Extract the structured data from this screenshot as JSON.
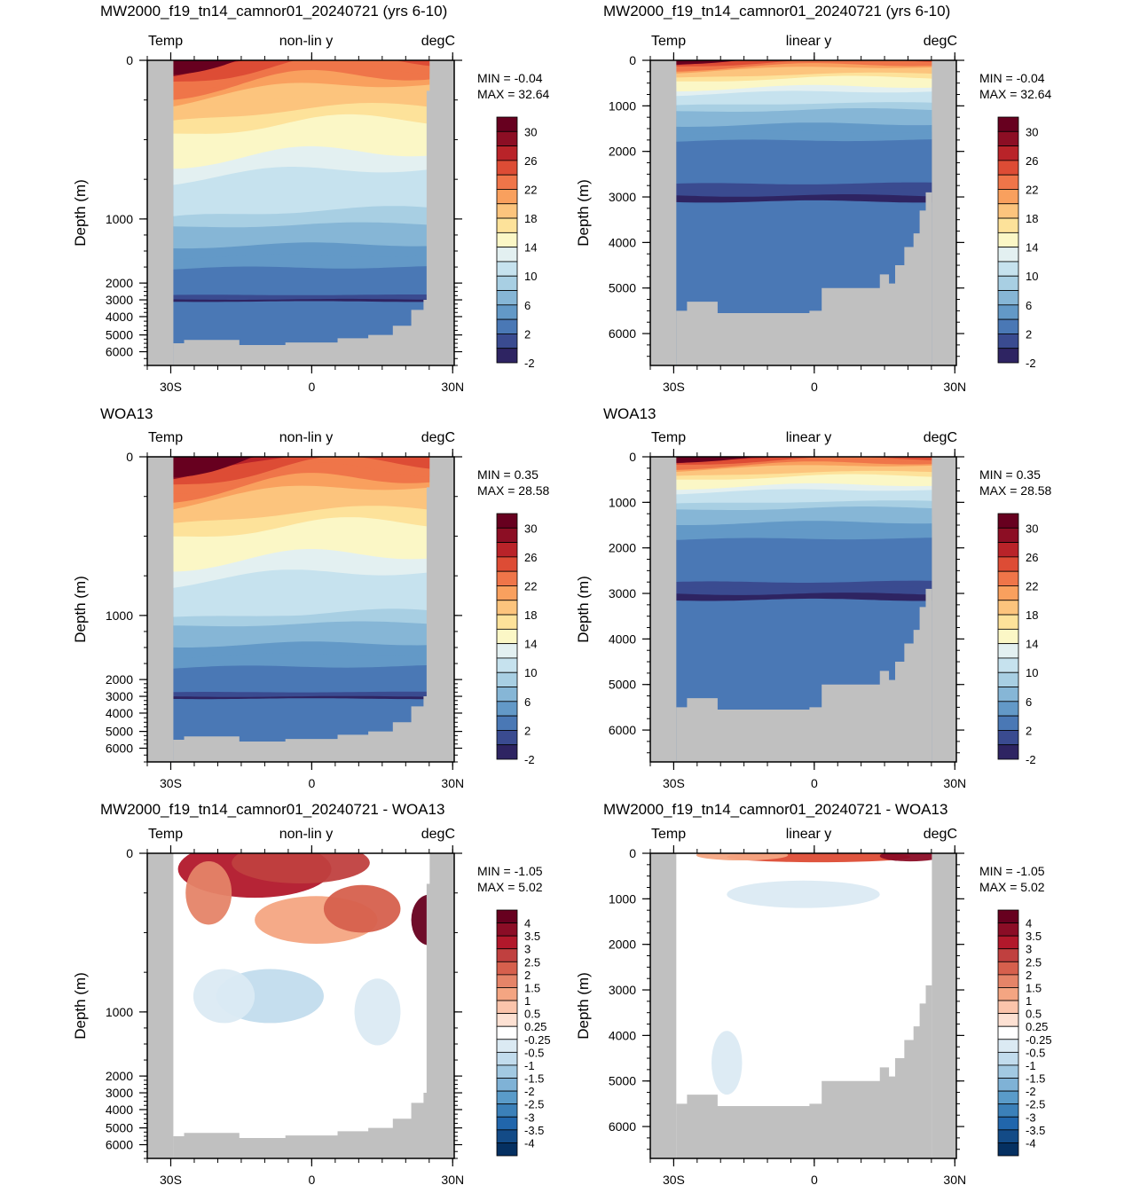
{
  "colors": {
    "land": "#c0c0c0",
    "temp_levels": [
      "#2e2462",
      "#3a4b90",
      "#4a78b5",
      "#6399c7",
      "#86b6d6",
      "#a8cfe3",
      "#c6e2ee",
      "#e3f0f1",
      "#fbf7c6",
      "#fde29a",
      "#fcc47d",
      "#f9a05e",
      "#ef7549",
      "#dd4c35",
      "#b92329",
      "#8c0e24",
      "#67001f"
    ],
    "temp_legend_labels": [
      "30",
      "26",
      "22",
      "18",
      "14",
      "10",
      "6",
      "2",
      "-2"
    ],
    "diff_levels": [
      "#053061",
      "#134b87",
      "#2166ac",
      "#3b80b9",
      "#5a9bc9",
      "#7fb2d6",
      "#a2c9e2",
      "#c2dced",
      "#dbeaf3",
      "#ffffff",
      "#fde1d3",
      "#fbc4ab",
      "#f4a582",
      "#e58468",
      "#d6604d",
      "#c0403f",
      "#b2182b",
      "#8b0d26",
      "#67001f"
    ],
    "diff_legend_labels": [
      "4",
      "3.5",
      "3",
      "2.5",
      "2",
      "1.5",
      "1",
      "0.5",
      "0.25",
      "-0.25",
      "-0.5",
      "-1",
      "-1.5",
      "-2",
      "-2.5",
      "-3",
      "-3.5",
      "-4"
    ]
  },
  "panels": [
    {
      "title": "MW2000_f19_tn14_camnor01_20240721 (yrs 6-10)",
      "left_label": "Temp",
      "center_label": "non-lin y",
      "right_label": "degC",
      "min_text": "MIN =  -0.04",
      "max_text": "MAX =  32.64",
      "legend": "temp",
      "ylabel": "Depth (m)",
      "yticks": [
        "0",
        "1000",
        "2000",
        "3000",
        "4000",
        "5000",
        "6000"
      ],
      "xticks": [
        "30S",
        "0",
        "30N"
      ]
    },
    {
      "title": "MW2000_f19_tn14_camnor01_20240721 (yrs 6-10)",
      "left_label": "Temp",
      "center_label": "linear y",
      "right_label": "degC",
      "min_text": "MIN =  -0.04",
      "max_text": "MAX =  32.64",
      "legend": "temp",
      "ylabel": "Depth (m)",
      "yticks": [
        "0",
        "1000",
        "2000",
        "3000",
        "4000",
        "5000",
        "6000"
      ],
      "xticks": [
        "30S",
        "0",
        "30N"
      ]
    },
    {
      "title": "WOA13",
      "left_label": "Temp",
      "center_label": "non-lin y",
      "right_label": "degC",
      "min_text": "MIN =  0.35",
      "max_text": "MAX =  28.58",
      "legend": "temp",
      "ylabel": "Depth (m)",
      "yticks": [
        "0",
        "1000",
        "2000",
        "3000",
        "4000",
        "5000",
        "6000"
      ],
      "xticks": [
        "30S",
        "0",
        "30N"
      ]
    },
    {
      "title": "WOA13",
      "left_label": "Temp",
      "center_label": "linear y",
      "right_label": "degC",
      "min_text": "MIN =  0.35",
      "max_text": "MAX =  28.58",
      "legend": "temp",
      "ylabel": "Depth (m)",
      "yticks": [
        "0",
        "1000",
        "2000",
        "3000",
        "4000",
        "5000",
        "6000"
      ],
      "xticks": [
        "30S",
        "0",
        "30N"
      ]
    },
    {
      "title": "MW2000_f19_tn14_camnor01_20240721 - WOA13",
      "left_label": "Temp",
      "center_label": "non-lin y",
      "right_label": "degC",
      "min_text": "MIN =  -1.05",
      "max_text": "MAX =   5.02",
      "legend": "diff",
      "ylabel": "Depth (m)",
      "yticks": [
        "0",
        "1000",
        "2000",
        "3000",
        "4000",
        "5000",
        "6000"
      ],
      "xticks": [
        "30S",
        "0",
        "30N"
      ]
    },
    {
      "title": "MW2000_f19_tn14_camnor01_20240721 - WOA13",
      "left_label": "Temp",
      "center_label": "linear y",
      "right_label": "degC",
      "min_text": "MIN =  -1.05",
      "max_text": "MAX =   5.02",
      "legend": "diff",
      "ylabel": "Depth (m)",
      "yticks": [
        "0",
        "1000",
        "2000",
        "3000",
        "4000",
        "5000",
        "6000"
      ],
      "xticks": [
        "30S",
        "0",
        "30N"
      ]
    }
  ],
  "chart_data": [
    {
      "type": "heatmap",
      "title": "MW2000_f19_tn14_camnor01_20240721 (yrs 6-10)",
      "variable": "Temp",
      "units": "degC",
      "y_scale": "non-lin y",
      "ylabel": "Depth (m)",
      "xlim": [
        -35,
        30
      ],
      "ylim": [
        0,
        6500
      ],
      "min": -0.04,
      "max": 32.64,
      "x": [
        -30,
        0,
        30
      ],
      "isotherm_depths_m": [
        {
          "temp": 30,
          "depth_at_eq": 100
        },
        {
          "temp": 14,
          "depth_at_eq": 500
        },
        {
          "temp": 6,
          "depth_at_eq": 900
        },
        {
          "temp": 2,
          "depth_at_eq": 2300
        }
      ],
      "contour_levels": [
        -2,
        0,
        2,
        4,
        6,
        8,
        10,
        12,
        14,
        16,
        18,
        20,
        22,
        24,
        26,
        28,
        30
      ]
    },
    {
      "type": "heatmap",
      "title": "MW2000_f19_tn14_camnor01_20240721 (yrs 6-10)",
      "variable": "Temp",
      "units": "degC",
      "y_scale": "linear y",
      "ylabel": "Depth (m)",
      "xlim": [
        -35,
        30
      ],
      "ylim": [
        0,
        6700
      ],
      "min": -0.04,
      "max": 32.64,
      "max_ocean_depth_m": 6000,
      "contour_levels": [
        -2,
        0,
        2,
        4,
        6,
        8,
        10,
        12,
        14,
        16,
        18,
        20,
        22,
        24,
        26,
        28,
        30
      ]
    },
    {
      "type": "heatmap",
      "title": "WOA13",
      "variable": "Temp",
      "units": "degC",
      "y_scale": "non-lin y",
      "ylabel": "Depth (m)",
      "xlim": [
        -35,
        30
      ],
      "ylim": [
        0,
        6500
      ],
      "min": 0.35,
      "max": 28.58,
      "contour_levels": [
        -2,
        0,
        2,
        4,
        6,
        8,
        10,
        12,
        14,
        16,
        18,
        20,
        22,
        24,
        26,
        28,
        30
      ]
    },
    {
      "type": "heatmap",
      "title": "WOA13",
      "variable": "Temp",
      "units": "degC",
      "y_scale": "linear y",
      "ylabel": "Depth (m)",
      "xlim": [
        -35,
        30
      ],
      "ylim": [
        0,
        6700
      ],
      "min": 0.35,
      "max": 28.58,
      "max_ocean_depth_m": 5500,
      "contour_levels": [
        -2,
        0,
        2,
        4,
        6,
        8,
        10,
        12,
        14,
        16,
        18,
        20,
        22,
        24,
        26,
        28,
        30
      ]
    },
    {
      "type": "heatmap",
      "title": "MW2000_f19_tn14_camnor01_20240721 - WOA13",
      "variable": "Temp",
      "units": "degC",
      "y_scale": "non-lin y",
      "ylabel": "Depth (m)",
      "xlim": [
        -35,
        30
      ],
      "ylim": [
        0,
        6500
      ],
      "min": -1.05,
      "max": 5.02,
      "contour_levels": [
        -4,
        -3.5,
        -3,
        -2.5,
        -2,
        -1.5,
        -1,
        -0.5,
        -0.25,
        0.25,
        0.5,
        1,
        1.5,
        2,
        2.5,
        3,
        3.5,
        4
      ]
    },
    {
      "type": "heatmap",
      "title": "MW2000_f19_tn14_camnor01_20240721 - WOA13",
      "variable": "Temp",
      "units": "degC",
      "y_scale": "linear y",
      "ylabel": "Depth (m)",
      "xlim": [
        -35,
        30
      ],
      "ylim": [
        0,
        6700
      ],
      "min": -1.05,
      "max": 5.02,
      "contour_levels": [
        -4,
        -3.5,
        -3,
        -2.5,
        -2,
        -1.5,
        -1,
        -0.5,
        -0.25,
        0.25,
        0.5,
        1,
        1.5,
        2,
        2.5,
        3,
        3.5,
        4
      ]
    }
  ]
}
